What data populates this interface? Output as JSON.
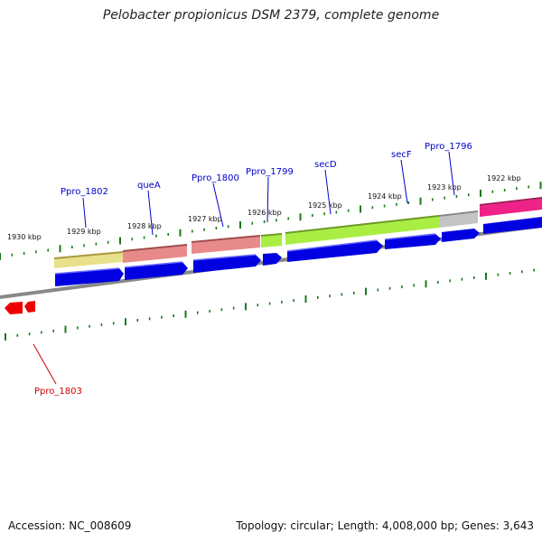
{
  "title": "Pelobacter propionicus DSM 2379, complete genome",
  "footer": {
    "accession": "Accession: NC_008609",
    "summary": "Topology: circular; Length: 4,008,000 bp; Genes: 3,643"
  },
  "kbp_ticks": [
    "1930 kbp",
    "1929 kbp",
    "1928 kbp",
    "1927 kbp",
    "1926 kbp",
    "1925 kbp",
    "1924 kbp",
    "1923 kbp",
    "1922 kbp"
  ],
  "gene_labels": [
    {
      "text": "Ppro_1802",
      "color": "#0000cc"
    },
    {
      "text": "queA",
      "color": "#0000cc"
    },
    {
      "text": "Ppro_1800",
      "color": "#0000cc"
    },
    {
      "text": "Ppro_1799",
      "color": "#0000cc"
    },
    {
      "text": "secD",
      "color": "#0000cc"
    },
    {
      "text": "secF",
      "color": "#0000cc"
    },
    {
      "text": "Ppro_1796",
      "color": "#0000cc"
    },
    {
      "text": "Ppro_1803",
      "color": "#cc0000"
    }
  ],
  "colors": {
    "forward_gene": "#0000e0",
    "reverse_gene": "#ee0000",
    "backbone": "#888888",
    "tick": "#1a7a1a",
    "cog_yellow": "#e8e08a",
    "cog_salmon": "#e88a8a",
    "cog_lime": "#aaee44",
    "cog_gray": "#c4c4c4",
    "cog_magenta": "#ee2288"
  }
}
